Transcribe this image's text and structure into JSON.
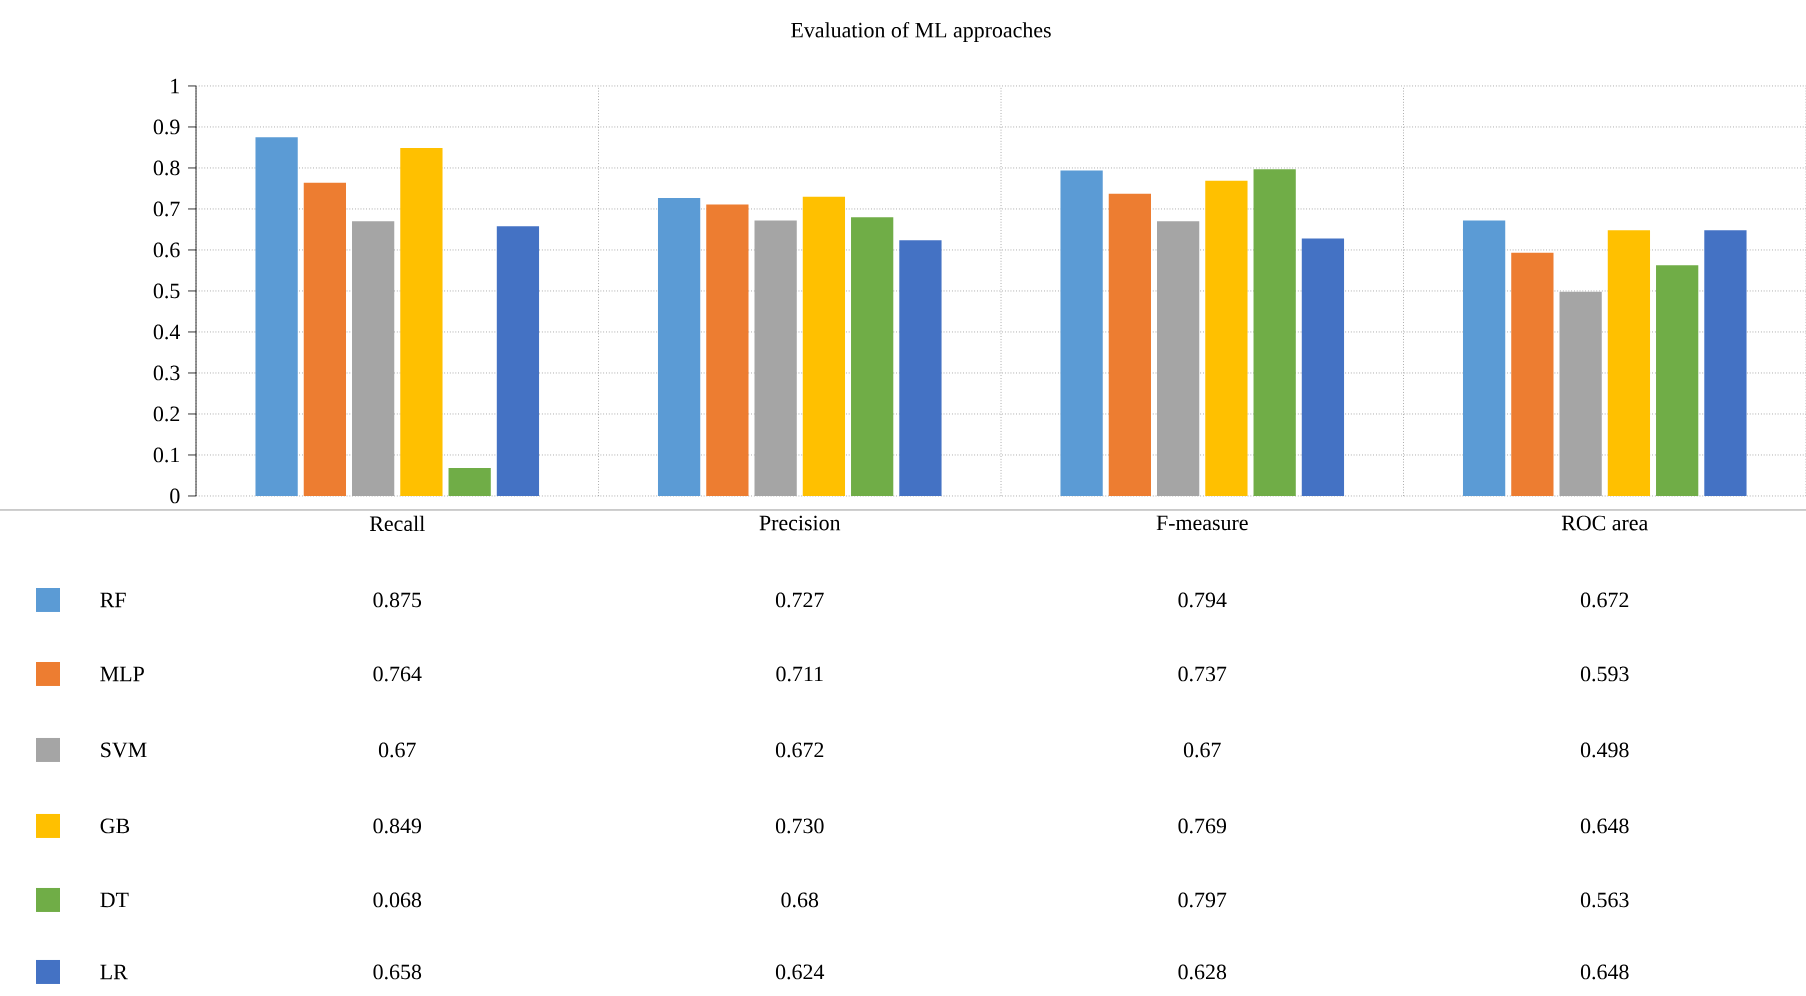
{
  "chart_data": {
    "type": "bar",
    "title": "Evaluation of ML approaches",
    "categories": [
      "Recall",
      "Precision",
      "F-measure",
      "ROC area"
    ],
    "series": [
      {
        "name": "RF",
        "color": "#5b9bd5",
        "values": [
          0.875,
          0.727,
          0.794,
          0.672
        ],
        "value_labels": [
          "0.875",
          "0.727",
          "0.794",
          "0.672"
        ]
      },
      {
        "name": "MLP",
        "color": "#ed7d31",
        "values": [
          0.764,
          0.711,
          0.737,
          0.593
        ],
        "value_labels": [
          "0.764",
          "0.711",
          "0.737",
          "0.593"
        ]
      },
      {
        "name": "SVM",
        "color": "#a5a5a5",
        "values": [
          0.67,
          0.672,
          0.67,
          0.498
        ],
        "value_labels": [
          "0.67",
          "0.672",
          "0.67",
          "0.498"
        ]
      },
      {
        "name": "GB",
        "color": "#ffc000",
        "values": [
          0.849,
          0.73,
          0.769,
          0.648
        ],
        "value_labels": [
          "0.849",
          "0.730",
          "0.769",
          "0.648"
        ]
      },
      {
        "name": "DT",
        "color": "#70ad47",
        "values": [
          0.068,
          0.68,
          0.797,
          0.563
        ],
        "value_labels": [
          "0.068",
          "0.68",
          "0.797",
          "0.563"
        ]
      },
      {
        "name": "LR",
        "color": "#4472c4",
        "values": [
          0.658,
          0.624,
          0.628,
          0.648
        ],
        "value_labels": [
          "0.658",
          "0.624",
          "0.628",
          "0.648"
        ]
      }
    ],
    "ylim": [
      0,
      1
    ],
    "yticks": [
      0,
      0.1,
      0.2,
      0.3,
      0.4,
      0.5,
      0.6,
      0.7,
      0.8,
      0.9,
      1
    ],
    "grid": true,
    "legend": "bottom"
  }
}
